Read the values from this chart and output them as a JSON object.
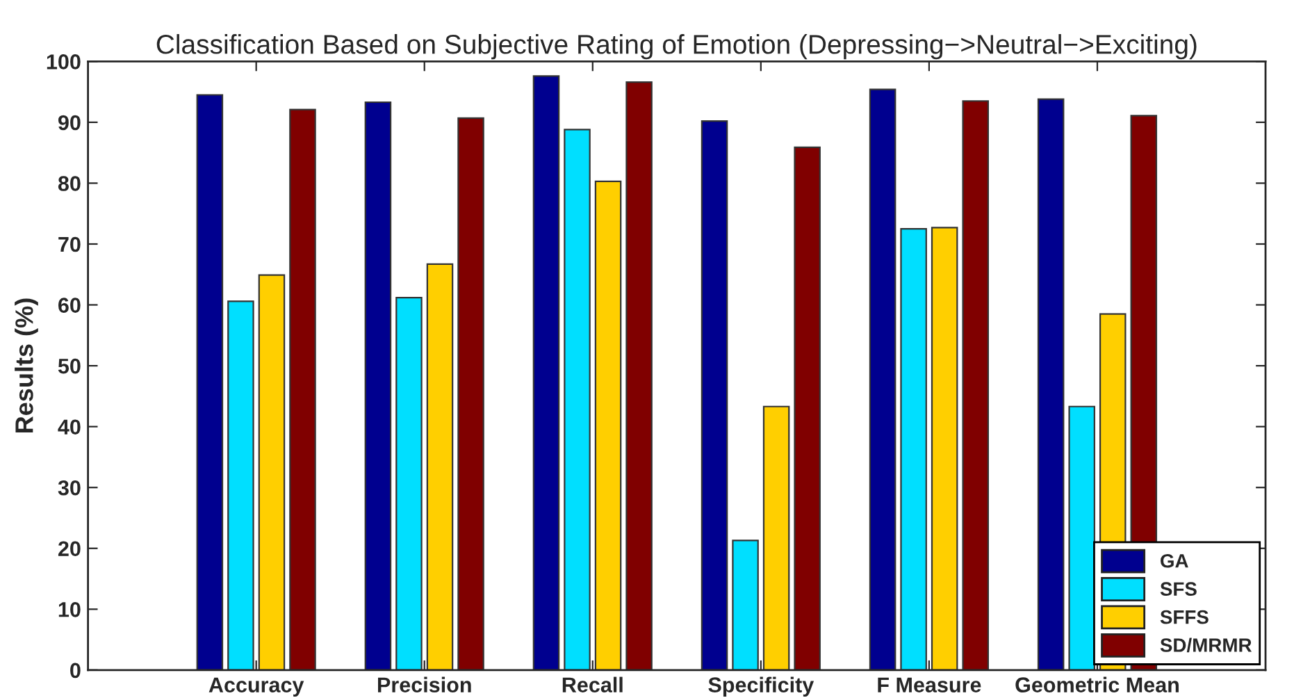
{
  "chart_data": {
    "type": "bar",
    "title": "Classification Based on Subjective Rating of Emotion (Depressing−>Neutral−>Exciting)",
    "ylabel": "Results (%)",
    "categories": [
      "Accuracy",
      "Precision",
      "Recall",
      "Specificity",
      "F Measure",
      "Geometric Mean"
    ],
    "series": [
      {
        "name": "GA",
        "color": "#00008f",
        "values": [
          94.5,
          93.3,
          97.6,
          90.2,
          95.4,
          93.8
        ]
      },
      {
        "name": "SFS",
        "color": "#00dfff",
        "values": [
          60.6,
          61.2,
          88.8,
          21.3,
          72.5,
          43.3
        ]
      },
      {
        "name": "SFFS",
        "color": "#ffcf00",
        "values": [
          64.9,
          66.7,
          80.3,
          43.3,
          72.7,
          58.5
        ]
      },
      {
        "name": "SD/MRMR",
        "color": "#800000",
        "values": [
          92.1,
          90.7,
          96.6,
          85.9,
          93.5,
          91.1
        ]
      }
    ],
    "ylim": [
      0,
      100
    ],
    "yticks": [
      0,
      10,
      20,
      30,
      40,
      50,
      60,
      70,
      80,
      90,
      100
    ],
    "grid": false,
    "legend": "bottom right"
  }
}
